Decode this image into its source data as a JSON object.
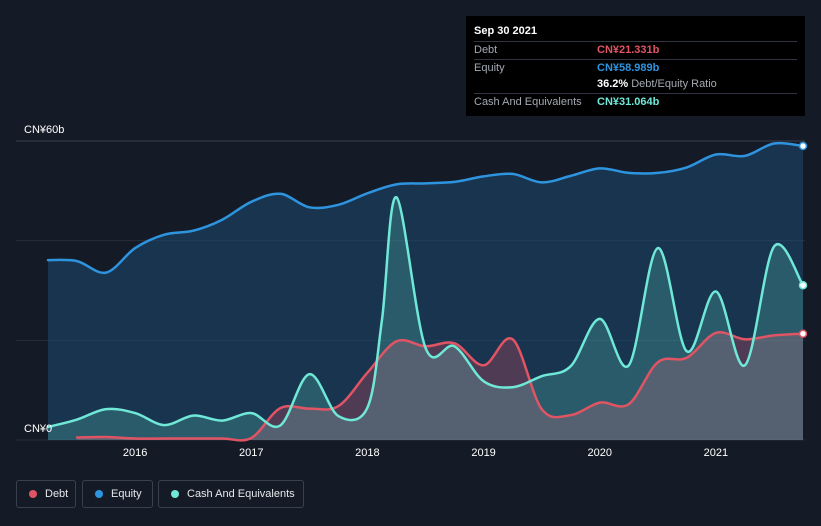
{
  "tooltip": {
    "date": "Sep 30 2021",
    "debt_label": "Debt",
    "debt_value": "CN¥21.331b",
    "equity_label": "Equity",
    "equity_value": "CN¥58.989b",
    "ratio_value": "36.2%",
    "ratio_label": "Debt/Equity Ratio",
    "cash_label": "Cash And Equivalents",
    "cash_value": "CN¥31.064b"
  },
  "legend": {
    "debt": "Debt",
    "equity": "Equity",
    "cash": "Cash And Equivalents"
  },
  "colors": {
    "debt": "#e05464",
    "equity": "#2e94e0",
    "cash": "#6fe8d8",
    "background": "#151b26"
  },
  "chart_data": {
    "type": "area",
    "y_axis_labels": [
      "CN¥60b",
      "CN¥0"
    ],
    "ylim": [
      0,
      60
    ],
    "x_ticks": [
      "2016",
      "2017",
      "2018",
      "2019",
      "2020",
      "2021"
    ],
    "x_tick_values": [
      2016.0,
      2017.0,
      2018.0,
      2019.0,
      2020.0,
      2021.0
    ],
    "xlim": [
      2014.75,
      2021.75
    ],
    "series": [
      {
        "name": "Debt",
        "x": [
          2015.5,
          2015.75,
          2016.0,
          2016.25,
          2016.5,
          2016.75,
          2017.0,
          2017.25,
          2017.5,
          2017.75,
          2018.0,
          2018.25,
          2018.5,
          2018.75,
          2019.0,
          2019.25,
          2019.5,
          2019.75,
          2020.0,
          2020.25,
          2020.5,
          2020.75,
          2021.0,
          2021.25,
          2021.5,
          2021.75
        ],
        "values": [
          0.5,
          0.6,
          0.3,
          0.3,
          0.3,
          0.3,
          0.4,
          6.4,
          6.3,
          6.8,
          13.5,
          19.8,
          18.8,
          19.4,
          15.0,
          20.2,
          6.2,
          5.0,
          7.5,
          7.2,
          15.6,
          16.5,
          21.5,
          20.2,
          21.0,
          21.331
        ]
      },
      {
        "name": "Equity",
        "x": [
          2015.25,
          2015.5,
          2015.75,
          2016.0,
          2016.25,
          2016.5,
          2016.75,
          2017.0,
          2017.25,
          2017.5,
          2017.75,
          2018.0,
          2018.25,
          2018.5,
          2018.75,
          2019.0,
          2019.25,
          2019.5,
          2019.75,
          2020.0,
          2020.25,
          2020.5,
          2020.75,
          2021.0,
          2021.25,
          2021.5,
          2021.75
        ],
        "values": [
          36.1,
          35.9,
          33.6,
          38.5,
          41.2,
          42.0,
          44.2,
          47.8,
          49.4,
          46.7,
          47.2,
          49.5,
          51.3,
          51.5,
          51.8,
          52.9,
          53.4,
          51.7,
          53.0,
          54.5,
          53.6,
          53.6,
          54.7,
          57.3,
          57.0,
          59.5,
          58.989
        ]
      },
      {
        "name": "Cash And Equivalents",
        "x": [
          2015.25,
          2015.5,
          2015.75,
          2016.0,
          2016.25,
          2016.5,
          2016.75,
          2017.0,
          2017.25,
          2017.5,
          2017.75,
          2018.0,
          2018.125,
          2018.25,
          2018.5,
          2018.75,
          2019.0,
          2019.25,
          2019.5,
          2019.75,
          2020.0,
          2020.25,
          2020.5,
          2020.75,
          2021.0,
          2021.25,
          2021.5,
          2021.75
        ],
        "values": [
          2.6,
          4.1,
          6.2,
          5.4,
          3.0,
          4.9,
          3.9,
          5.4,
          2.9,
          13.2,
          4.8,
          6.5,
          24.0,
          48.7,
          18.5,
          18.8,
          11.8,
          10.6,
          12.8,
          14.8,
          24.3,
          15.0,
          38.5,
          17.8,
          29.8,
          15.0,
          38.8,
          31.064
        ]
      }
    ]
  }
}
